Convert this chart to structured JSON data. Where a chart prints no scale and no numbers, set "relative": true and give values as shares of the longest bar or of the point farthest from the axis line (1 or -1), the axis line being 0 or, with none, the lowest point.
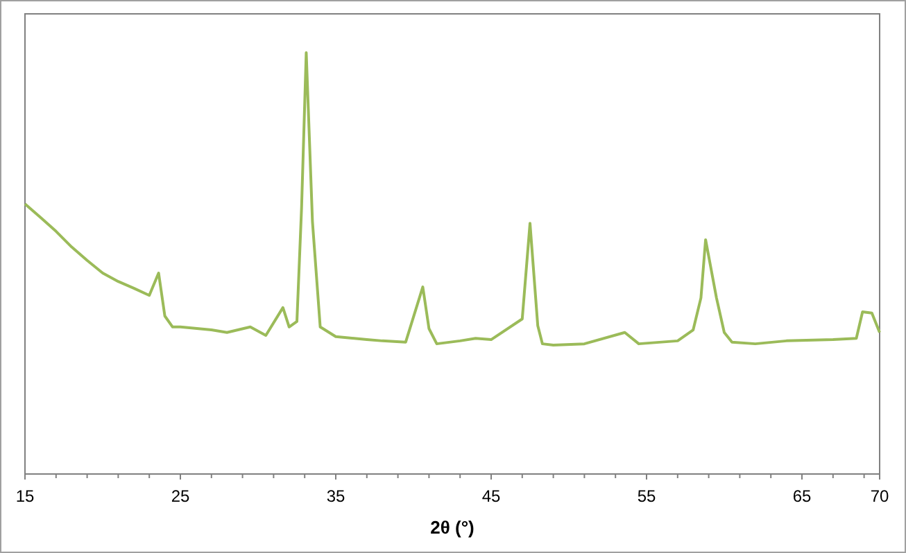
{
  "chart_data": {
    "type": "line",
    "xlabel": "2θ (°)",
    "relative": true,
    "xlim": [
      15,
      70
    ],
    "xticks": [
      15,
      25,
      35,
      45,
      55,
      65,
      70
    ],
    "grid": false,
    "legend": false,
    "marker": "none",
    "line_style": "solid",
    "series": [
      {
        "color": "#9bbb59",
        "x": [
          15,
          16,
          17,
          18,
          19,
          20,
          21,
          22,
          23,
          23.6,
          24,
          24.5,
          25,
          27,
          28,
          29.5,
          30.5,
          31.6,
          32,
          32.5,
          32.8,
          33.1,
          33.5,
          34,
          35,
          37,
          38,
          39.5,
          40.6,
          41,
          41.5,
          43,
          44,
          45,
          47,
          47.5,
          48,
          48.3,
          49,
          51,
          53.6,
          54.5,
          57,
          58,
          58.5,
          58.8,
          59.5,
          60,
          60.5,
          62,
          64,
          67,
          68.5,
          68.9,
          69.5,
          70
        ],
        "values": [
          0.641,
          0.609,
          0.576,
          0.539,
          0.507,
          0.477,
          0.457,
          0.441,
          0.424,
          0.477,
          0.375,
          0.349,
          0.349,
          0.342,
          0.336,
          0.349,
          0.329,
          0.395,
          0.349,
          0.362,
          0.632,
          1,
          0.599,
          0.349,
          0.326,
          0.319,
          0.316,
          0.313,
          0.444,
          0.345,
          0.309,
          0.316,
          0.322,
          0.319,
          0.368,
          0.595,
          0.352,
          0.309,
          0.306,
          0.309,
          0.336,
          0.309,
          0.316,
          0.342,
          0.418,
          0.556,
          0.418,
          0.336,
          0.313,
          0.309,
          0.316,
          0.319,
          0.322,
          0.385,
          0.382,
          0.336
        ]
      }
    ]
  }
}
